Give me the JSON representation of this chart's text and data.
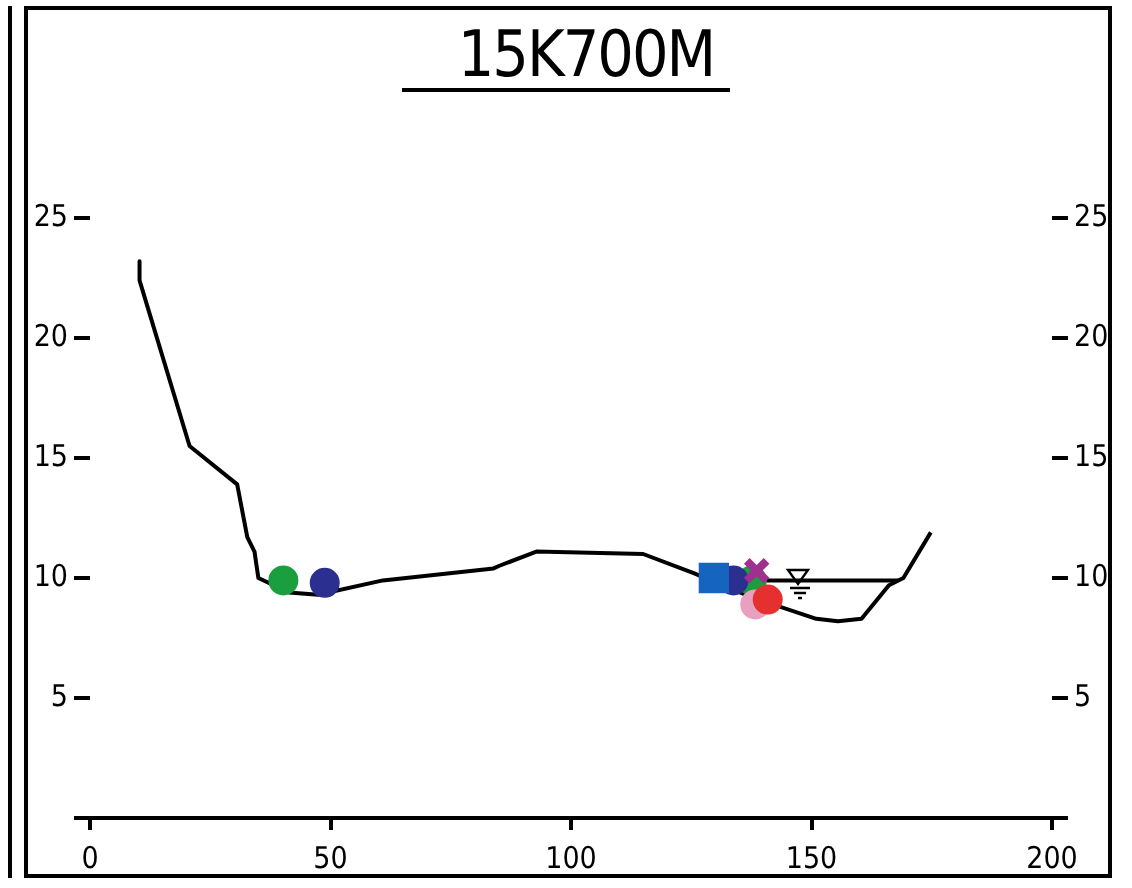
{
  "chart_data": {
    "type": "line",
    "title": "15K700M",
    "xlim": [
      0,
      200
    ],
    "xticks": [
      0,
      50,
      100,
      150,
      200
    ],
    "ylim": [
      0,
      25
    ],
    "yticks": [
      {
        "value": 0,
        "label": null
      },
      5,
      10,
      15,
      20,
      25
    ],
    "y2lim": [
      0,
      25
    ],
    "y2ticks": [
      {
        "value": 0,
        "label": null
      },
      5,
      10,
      15,
      20,
      25
    ],
    "grid": false,
    "legend": false,
    "marker": "none",
    "series": [
      {
        "color": "#000000",
        "x": [
          10.3,
          10.3,
          20.7,
          30.6,
          32.7,
          34.2,
          35,
          41.4,
          47.4,
          60.9,
          83.9,
          85,
          92.8,
          115,
          125.5,
          137.5,
          151,
          155.5,
          160.4,
          166.1,
          169.1,
          174.8
        ],
        "values": [
          23.2,
          22.4,
          15.5,
          13.9,
          11.7,
          11.1,
          10,
          9.4,
          9.3,
          9.9,
          10.4,
          10.5,
          11.1,
          11,
          10.2,
          9.2,
          8.3,
          8.2,
          8.3,
          9.7,
          10,
          11.9
        ]
      },
      {
        "color": "#000000",
        "x": [
          133,
          168
        ],
        "values": [
          9.9,
          9.9
        ]
      },
      {
        "type": "scatter",
        "marker": "circle",
        "color": "#1a9e3e",
        "x": [
          40.2,
          137.6
        ],
        "values": [
          9.9,
          9.9
        ]
      },
      {
        "type": "scatter",
        "marker": "circle",
        "color": "#2b2f8f",
        "x": [
          48.8,
          133.8
        ],
        "values": [
          9.8,
          9.9
        ]
      },
      {
        "type": "scatter",
        "marker": "square",
        "color": "#1565c0",
        "x": [
          129.7
        ],
        "values": [
          10
        ]
      },
      {
        "type": "scatter",
        "marker": "cross",
        "color": "#a0308f",
        "x": [
          138.6
        ],
        "values": [
          10.3
        ]
      },
      {
        "type": "scatter",
        "marker": "circle",
        "color": "#e8a0c0",
        "x": [
          138.3
        ],
        "values": [
          8.9
        ]
      },
      {
        "type": "scatter",
        "marker": "circle",
        "color": "#e53030",
        "x": [
          140.9
        ],
        "values": [
          9.1
        ]
      }
    ]
  }
}
